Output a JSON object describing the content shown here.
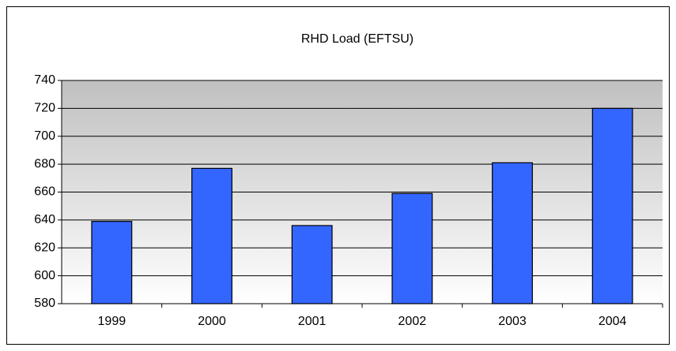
{
  "chart_data": {
    "type": "bar",
    "title": "RHD Load (EFTSU)",
    "categories": [
      "1999",
      "2000",
      "2001",
      "2002",
      "2003",
      "2004"
    ],
    "values": [
      639,
      677,
      636,
      659,
      681,
      720
    ],
    "color": "#3366ff",
    "ylim": [
      580,
      740
    ],
    "yticks": [
      580,
      600,
      620,
      640,
      660,
      680,
      700,
      720,
      740
    ],
    "grid": true
  }
}
